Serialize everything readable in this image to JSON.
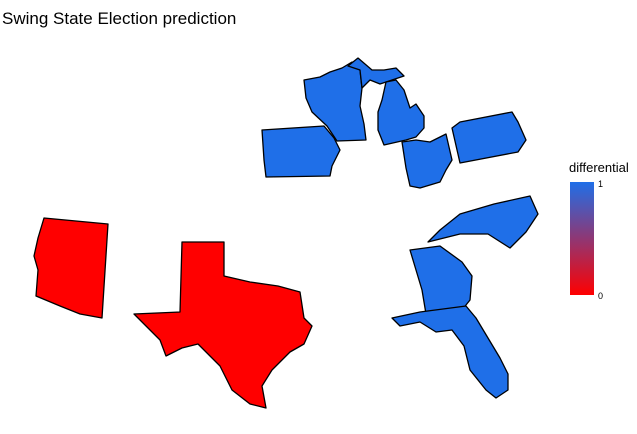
{
  "title": "Swing State Election prediction",
  "legend": {
    "title": "differential",
    "max_label": "1",
    "min_label": "0",
    "high_color": "#1f6fe8",
    "low_color": "#ff0000"
  },
  "states": [
    {
      "name": "Wisconsin",
      "differential": 1
    },
    {
      "name": "Michigan",
      "differential": 1
    },
    {
      "name": "Iowa",
      "differential": 1
    },
    {
      "name": "Ohio",
      "differential": 1
    },
    {
      "name": "Pennsylvania",
      "differential": 1
    },
    {
      "name": "North Carolina",
      "differential": 1
    },
    {
      "name": "Georgia",
      "differential": 1
    },
    {
      "name": "Florida",
      "differential": 1
    },
    {
      "name": "Arizona",
      "differential": 0
    },
    {
      "name": "Texas",
      "differential": 0
    }
  ]
}
